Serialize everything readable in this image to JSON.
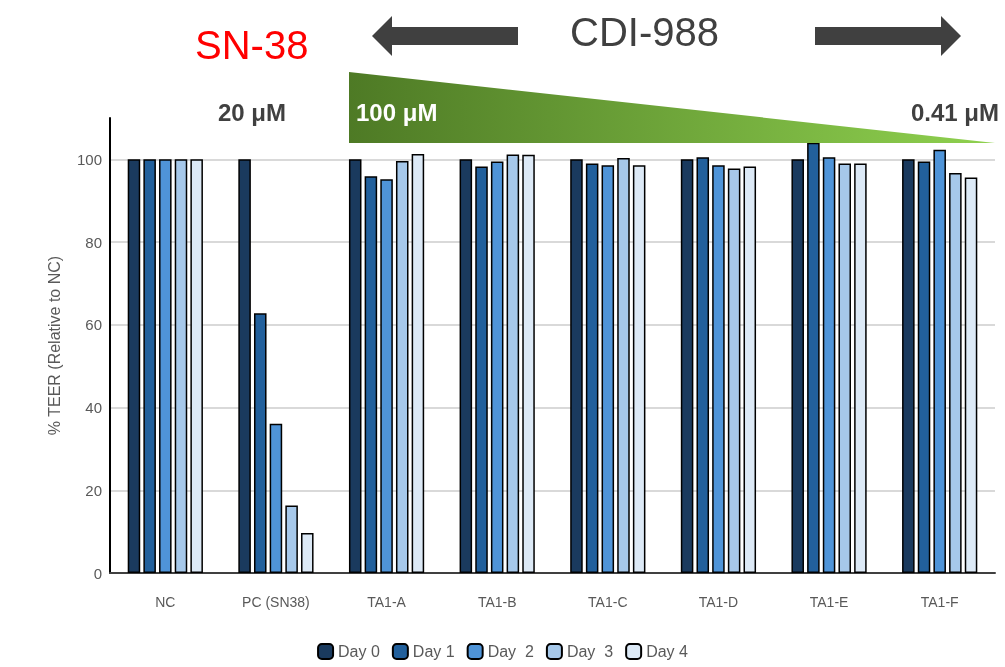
{
  "chart_data": {
    "type": "bar",
    "ylabel": "% TEER (Relative to NC)",
    "categories": [
      "NC",
      "PC (SN38)",
      "TA1-A",
      "TA1-B",
      "TA1-C",
      "TA1-D",
      "TA1-E",
      "TA1-F"
    ],
    "series": [
      {
        "name": "Day 0",
        "color": "#1a3a5e",
        "values": [
          100,
          100,
          100,
          100,
          100,
          100,
          100,
          100
        ]
      },
      {
        "name": "Day 1",
        "color": "#22609c",
        "values": [
          100,
          62.8,
          95.9,
          98.3,
          99,
          100.5,
          104,
          99.5
        ]
      },
      {
        "name": "Day  2",
        "color": "#4f94d8",
        "values": [
          100,
          36.1,
          95.2,
          99.5,
          98.6,
          98.6,
          100.5,
          102.3
        ]
      },
      {
        "name": "Day  3",
        "color": "#a6c8ea",
        "values": [
          100,
          16.3,
          99.6,
          101.2,
          100.3,
          97.8,
          99,
          96.7
        ]
      },
      {
        "name": "Day 4",
        "color": "#dce9f6",
        "values": [
          100,
          9.7,
          101.3,
          101.1,
          98.6,
          98.3,
          99,
          95.6
        ]
      }
    ],
    "ylim": [
      0,
      110
    ],
    "yticks": [
      0,
      20,
      40,
      60,
      80,
      100
    ],
    "grid": "y",
    "legend": "bottom",
    "annotations": [
      "SN-38",
      "CDI-988",
      "20 μM",
      "100 μM",
      "0.41 μM"
    ]
  }
}
